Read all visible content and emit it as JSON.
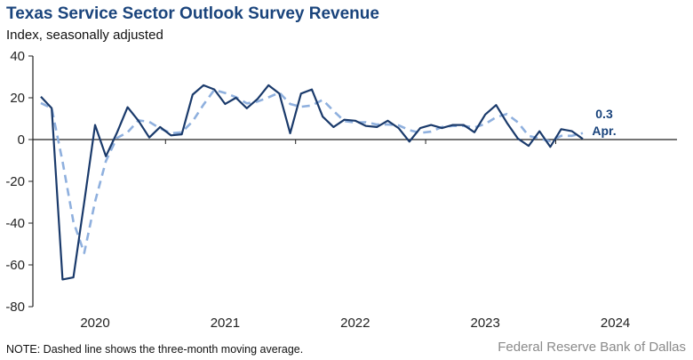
{
  "chart_data": {
    "type": "line",
    "title": "Texas Service Sector Outlook Survey Revenue",
    "subtitle": "Index, seasonally adjusted",
    "xlabel": "",
    "ylabel": "",
    "ylim": [
      -80,
      40
    ],
    "yticks": [
      40,
      20,
      0,
      -20,
      -40,
      -60,
      -80
    ],
    "xticks": [
      "2020",
      "2021",
      "2022",
      "2023",
      "2024"
    ],
    "start_month": "Feb 2020",
    "end_month": "Apr 2024",
    "series": [
      {
        "name": "Revenue index",
        "style": "solid",
        "color": "#1a3a6b",
        "values": [
          20.5,
          15,
          -67,
          -66,
          -30,
          7,
          -8,
          3,
          15.5,
          9,
          1,
          6,
          2,
          2.5,
          21.5,
          26,
          24,
          17,
          20,
          15,
          19.5,
          26,
          22,
          3,
          22,
          24,
          11,
          6,
          9.5,
          9,
          6.5,
          6,
          9,
          5.5,
          -1,
          5.5,
          7,
          5.5,
          7,
          7,
          3.5,
          12,
          16.5,
          8,
          0.5,
          -3,
          4,
          -3.5,
          5,
          4,
          0.3
        ]
      },
      {
        "name": "Three-month moving average",
        "style": "dashed",
        "color": "#8fb0de",
        "values": [
          17.5,
          15,
          -10.5,
          -39.3,
          -54.3,
          -29.7,
          -10.3,
          0.7,
          3.5,
          9.2,
          8.5,
          5.3,
          3,
          3.5,
          8.7,
          16.7,
          23.8,
          22.3,
          20.3,
          17.3,
          18.2,
          20.2,
          22.5,
          17,
          15.7,
          16.3,
          19,
          13.7,
          8.8,
          8.2,
          8.3,
          7.2,
          7.2,
          6.8,
          4.5,
          3.2,
          3.8,
          6,
          6.5,
          6.5,
          5.8,
          7.5,
          10.7,
          12.2,
          8.3,
          1.8,
          0.5,
          -0.8,
          1.8,
          1.8,
          3.1
        ]
      }
    ],
    "annotation": {
      "value": "0.3",
      "label": "Apr."
    },
    "grid": false
  },
  "note": "NOTE: Dashed line shows the three-month moving average.",
  "source": "Federal Reserve Bank of Dallas"
}
